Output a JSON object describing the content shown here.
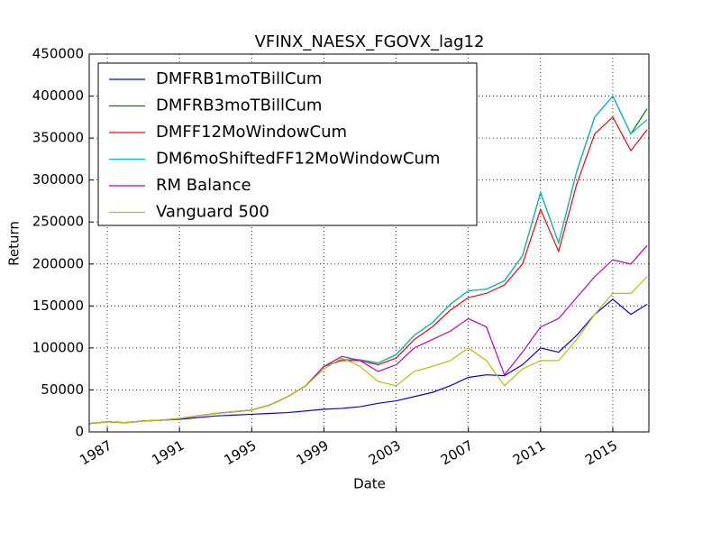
{
  "chart_data": {
    "type": "line",
    "title": "VFINX_NAESX_FGOVX_lag12",
    "x_label": "Date",
    "y_label": "Return",
    "x": [
      1986,
      1987,
      1988,
      1989,
      1990,
      1991,
      1992,
      1993,
      1994,
      1995,
      1996,
      1997,
      1998,
      1999,
      2000,
      2001,
      2002,
      2003,
      2004,
      2005,
      2006,
      2007,
      2008,
      2009,
      2010,
      2011,
      2012,
      2013,
      2014,
      2015,
      2016,
      2016.9
    ],
    "series": [
      {
        "name": "DMFRB1moTBillCum",
        "color": "#0000ff",
        "values": [
          10000,
          12000,
          11000,
          13000,
          14000,
          15000,
          17000,
          19000,
          20000,
          21000,
          22000,
          23000,
          25000,
          27000,
          28000,
          30000,
          34000,
          37000,
          42000,
          47000,
          55000,
          65000,
          68000,
          67000,
          80000,
          100000,
          95000,
          115000,
          140000,
          158000,
          140000,
          152000
        ]
      },
      {
        "name": "DMFRB3moTBillCum",
        "color": "#008000",
        "values": [
          10000,
          12000,
          11000,
          13000,
          14000,
          16000,
          19000,
          22000,
          24000,
          26000,
          32000,
          42000,
          55000,
          78000,
          86000,
          86000,
          82000,
          92000,
          115000,
          130000,
          152000,
          168000,
          170000,
          180000,
          210000,
          285000,
          225000,
          310000,
          375000,
          400000,
          355000,
          385000
        ]
      },
      {
        "name": "DMFF12MoWindowCum",
        "color": "#ff0000",
        "values": [
          10000,
          12000,
          11000,
          13000,
          14000,
          16000,
          19000,
          22000,
          24000,
          26000,
          32000,
          42000,
          55000,
          78000,
          85000,
          85000,
          80000,
          88000,
          110000,
          125000,
          145000,
          160000,
          165000,
          175000,
          200000,
          265000,
          215000,
          295000,
          355000,
          375000,
          335000,
          360000
        ]
      },
      {
        "name": "DM6moShiftedFF12MoWindowCum",
        "color": "#00bfbf",
        "values": [
          10000,
          12000,
          11000,
          13000,
          14000,
          16000,
          19000,
          22000,
          24000,
          26000,
          32000,
          42000,
          55000,
          78000,
          86000,
          86000,
          82000,
          92000,
          115000,
          130000,
          152000,
          168000,
          170000,
          180000,
          210000,
          285000,
          225000,
          310000,
          375000,
          400000,
          355000,
          372000
        ]
      },
      {
        "name": "RM Balance",
        "color": "#bf00bf",
        "values": [
          10000,
          12000,
          11000,
          13000,
          14000,
          16000,
          19000,
          22000,
          24000,
          26000,
          32000,
          42000,
          55000,
          78000,
          90000,
          85000,
          72000,
          80000,
          100000,
          110000,
          120000,
          135000,
          125000,
          68000,
          95000,
          125000,
          135000,
          160000,
          185000,
          205000,
          200000,
          222000
        ]
      },
      {
        "name": "Vanguard 500",
        "color": "#bfbf00",
        "values": [
          10000,
          12000,
          11000,
          13000,
          14000,
          16000,
          19000,
          22000,
          24000,
          26000,
          32000,
          42000,
          55000,
          75000,
          88000,
          78000,
          60000,
          55000,
          72000,
          78000,
          85000,
          100000,
          85000,
          55000,
          75000,
          85000,
          85000,
          110000,
          140000,
          165000,
          165000,
          185000
        ]
      }
    ],
    "xlim": [
      1986,
      2017
    ],
    "xticks": [
      1987,
      1991,
      1995,
      1999,
      2003,
      2007,
      2011,
      2015
    ],
    "ylim": [
      0,
      450000
    ],
    "yticks": [
      0,
      50000,
      100000,
      150000,
      200000,
      250000,
      300000,
      350000,
      400000,
      450000
    ],
    "grid": true,
    "legend": "upper left"
  }
}
